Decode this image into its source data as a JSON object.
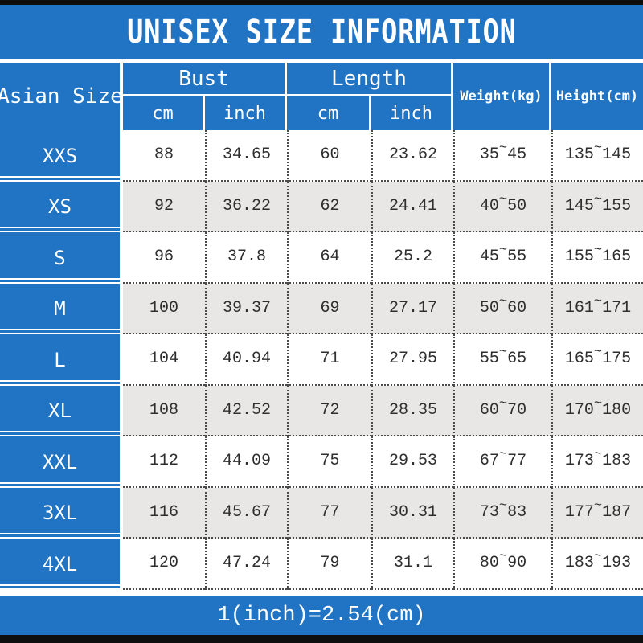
{
  "colors": {
    "blue": "#2173c4",
    "alt_row": "#e8e7e5",
    "bar": "#0e0e0e",
    "text": "#2e2e2e"
  },
  "chart_data": {
    "type": "table",
    "title": "UNISEX SIZE INFORMATION",
    "note": "1(inch)=2.54(cm)",
    "tilde": "~",
    "header": {
      "asian_size": "Asian Size",
      "bust": "Bust",
      "length": "Length",
      "weight": "Weight(kg)",
      "height": "Height(cm)",
      "cm": "cm",
      "inch": "inch"
    },
    "columns": [
      "Asian Size",
      "Bust cm",
      "Bust inch",
      "Length cm",
      "Length inch",
      "Weight(kg) min",
      "Weight(kg) max",
      "Height(cm) min",
      "Height(cm) max"
    ],
    "rows": [
      [
        "XXS",
        "88",
        "34.65",
        "60",
        "23.62",
        "35",
        "45",
        "135",
        "145"
      ],
      [
        "XS",
        "92",
        "36.22",
        "62",
        "24.41",
        "40",
        "50",
        "145",
        "155"
      ],
      [
        "S",
        "96",
        "37.8",
        "64",
        "25.2",
        "45",
        "55",
        "155",
        "165"
      ],
      [
        "M",
        "100",
        "39.37",
        "69",
        "27.17",
        "50",
        "60",
        "161",
        "171"
      ],
      [
        "L",
        "104",
        "40.94",
        "71",
        "27.95",
        "55",
        "65",
        "165",
        "175"
      ],
      [
        "XL",
        "108",
        "42.52",
        "72",
        "28.35",
        "60",
        "70",
        "170",
        "180"
      ],
      [
        "XXL",
        "112",
        "44.09",
        "75",
        "29.53",
        "67",
        "77",
        "173",
        "183"
      ],
      [
        "3XL",
        "116",
        "45.67",
        "77",
        "30.31",
        "73",
        "83",
        "177",
        "187"
      ],
      [
        "4XL",
        "120",
        "47.24",
        "79",
        "31.1",
        "80",
        "90",
        "183",
        "193"
      ]
    ]
  }
}
